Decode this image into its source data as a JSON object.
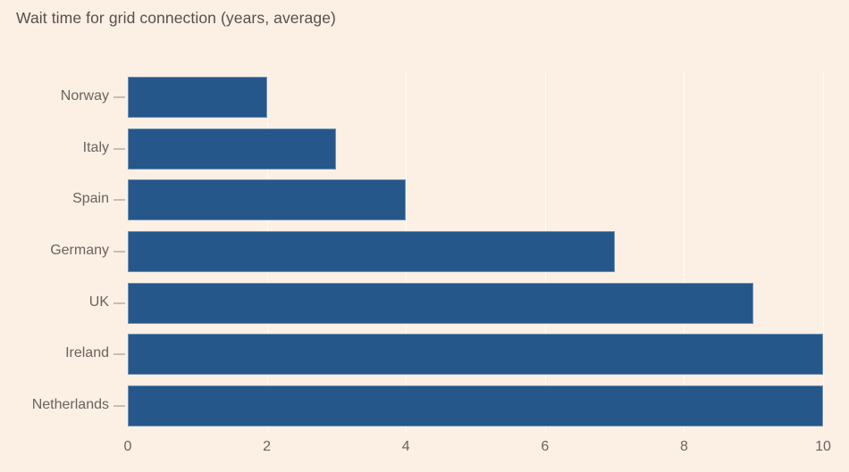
{
  "title": "Wait time for grid connection (years, average)",
  "colors": {
    "background": "#FCF0E5",
    "bar": "#25578A",
    "title_text": "#56504B",
    "axis_text": "#6A635D",
    "gridline": "rgba(255,255,255,0.7)",
    "category_tick": "#C9BCB0"
  },
  "chart_data": {
    "type": "bar",
    "orientation": "horizontal",
    "title": "Wait time for grid connection (years, average)",
    "categories": [
      "Norway",
      "Italy",
      "Spain",
      "Germany",
      "UK",
      "Ireland",
      "Netherlands"
    ],
    "values": [
      2,
      3,
      4,
      7,
      9,
      10,
      10
    ],
    "xlabel": "",
    "ylabel": "",
    "xlim": [
      0,
      10
    ],
    "xticks": [
      0,
      2,
      4,
      6,
      8,
      10
    ],
    "grid": true,
    "legend": false
  }
}
